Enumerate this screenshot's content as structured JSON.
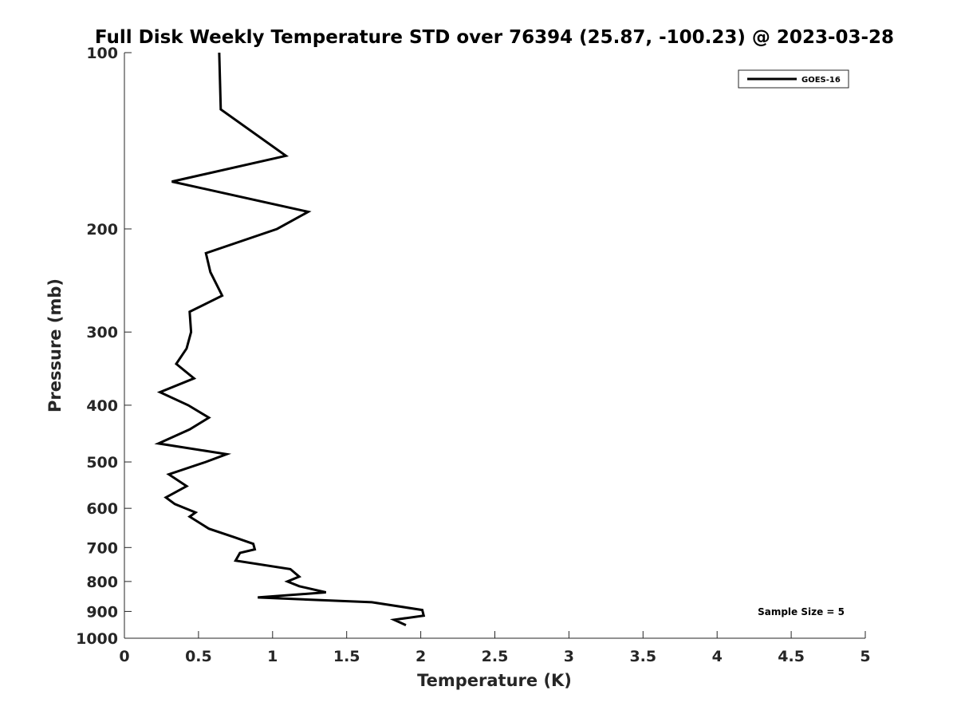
{
  "chart_data": {
    "type": "line",
    "title": "Full Disk Weekly Temperature STD over 76394 (25.87, -100.23) @ 2023-03-28",
    "xlabel": "Temperature (K)",
    "ylabel": "Pressure (mb)",
    "xlim": [
      0,
      5
    ],
    "ylim": [
      100,
      1000
    ],
    "y_scale": "log",
    "y_reversed": true,
    "x_ticks": [
      "0",
      "0.5",
      "1",
      "1.5",
      "2",
      "2.5",
      "3",
      "3.5",
      "4",
      "4.5",
      "5"
    ],
    "y_ticks": [
      "100",
      "200",
      "300",
      "400",
      "500",
      "600",
      "700",
      "800",
      "900",
      "1000"
    ],
    "grid": false,
    "legend_position": "top-right",
    "annotation": "Sample Size = 5",
    "series": [
      {
        "name": "GOES-16",
        "color": "#000000",
        "points": [
          [
            0.64,
            100
          ],
          [
            0.65,
            125
          ],
          [
            1.09,
            150
          ],
          [
            0.32,
            166
          ],
          [
            1.24,
            187
          ],
          [
            1.03,
            200
          ],
          [
            0.55,
            220
          ],
          [
            0.58,
            237
          ],
          [
            0.66,
            260
          ],
          [
            0.44,
            277
          ],
          [
            0.45,
            300
          ],
          [
            0.42,
            320
          ],
          [
            0.35,
            340
          ],
          [
            0.47,
            360
          ],
          [
            0.24,
            380
          ],
          [
            0.43,
            400
          ],
          [
            0.57,
            420
          ],
          [
            0.44,
            440
          ],
          [
            0.23,
            465
          ],
          [
            0.69,
            485
          ],
          [
            0.55,
            500
          ],
          [
            0.3,
            525
          ],
          [
            0.42,
            550
          ],
          [
            0.28,
            575
          ],
          [
            0.34,
            590
          ],
          [
            0.48,
            610
          ],
          [
            0.44,
            620
          ],
          [
            0.57,
            650
          ],
          [
            0.74,
            672
          ],
          [
            0.87,
            690
          ],
          [
            0.88,
            705
          ],
          [
            0.78,
            715
          ],
          [
            0.75,
            737
          ],
          [
            1.12,
            762
          ],
          [
            1.18,
            785
          ],
          [
            1.1,
            800
          ],
          [
            1.18,
            815
          ],
          [
            1.36,
            835
          ],
          [
            0.9,
            852
          ],
          [
            1.67,
            868
          ],
          [
            2.01,
            895
          ],
          [
            2.02,
            915
          ],
          [
            1.82,
            930
          ],
          [
            1.9,
            950
          ]
        ]
      }
    ]
  }
}
